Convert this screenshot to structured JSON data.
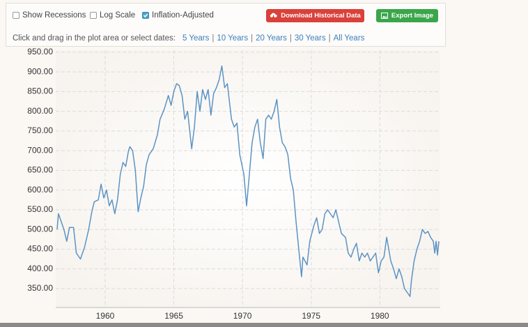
{
  "controls": {
    "checkboxes": [
      {
        "label": "Show Recessions",
        "checked": false
      },
      {
        "label": "Log Scale",
        "checked": false
      },
      {
        "label": "Inflation-Adjusted",
        "checked": true
      }
    ],
    "buttons": {
      "download": "Download Historical Data",
      "export": "Export Image"
    },
    "range_prompt": "Click and drag in the plot area or select dates:",
    "range_links": [
      "5 Years",
      "10 Years",
      "20 Years",
      "30 Years",
      "All Years"
    ],
    "separator": "|"
  },
  "chart_data": {
    "type": "line",
    "color": "#5b93c4",
    "grid": true,
    "xlim": [
      1956.4,
      1984.4
    ],
    "ylim": [
      302,
      955
    ],
    "xticks": [
      1960,
      1965,
      1970,
      1975,
      1980
    ],
    "yticks": [
      {
        "value": 350,
        "label": "350.00"
      },
      {
        "value": 400,
        "label": "400.00"
      },
      {
        "value": 450,
        "label": "450.00"
      },
      {
        "value": 500,
        "label": "500.00"
      },
      {
        "value": 550,
        "label": "550.00"
      },
      {
        "value": 600,
        "label": "600.00"
      },
      {
        "value": 650,
        "label": "650.00"
      },
      {
        "value": 700,
        "label": "700.00"
      },
      {
        "value": 750,
        "label": "750.00"
      },
      {
        "value": 800,
        "label": "800.00"
      },
      {
        "value": 850,
        "label": "850.00"
      },
      {
        "value": 900,
        "label": "900.00"
      },
      {
        "value": 950,
        "label": "950.00"
      }
    ],
    "x": [
      1956.5,
      1956.6,
      1957.0,
      1957.2,
      1957.4,
      1957.7,
      1957.9,
      1958.2,
      1958.5,
      1958.8,
      1959.0,
      1959.2,
      1959.5,
      1959.7,
      1959.9,
      1960.1,
      1960.3,
      1960.5,
      1960.7,
      1960.9,
      1961.1,
      1961.3,
      1961.5,
      1961.7,
      1961.8,
      1962.0,
      1962.2,
      1962.4,
      1962.6,
      1962.8,
      1963.0,
      1963.2,
      1963.5,
      1963.8,
      1964.0,
      1964.3,
      1964.6,
      1964.8,
      1965.0,
      1965.2,
      1965.4,
      1965.6,
      1965.8,
      1966.0,
      1966.3,
      1966.5,
      1966.7,
      1966.9,
      1967.1,
      1967.3,
      1967.5,
      1967.7,
      1967.9,
      1968.1,
      1968.3,
      1968.5,
      1968.7,
      1968.9,
      1969.2,
      1969.4,
      1969.6,
      1969.8,
      1970.1,
      1970.3,
      1970.5,
      1970.7,
      1970.9,
      1971.1,
      1971.3,
      1971.5,
      1971.7,
      1971.9,
      1972.1,
      1972.3,
      1972.5,
      1972.7,
      1972.9,
      1973.1,
      1973.3,
      1973.5,
      1973.7,
      1973.9,
      1974.1,
      1974.3,
      1974.4,
      1974.7,
      1974.9,
      1975.2,
      1975.4,
      1975.6,
      1975.8,
      1976.0,
      1976.2,
      1976.4,
      1976.6,
      1976.8,
      1977.0,
      1977.2,
      1977.5,
      1977.7,
      1977.9,
      1978.1,
      1978.3,
      1978.5,
      1978.7,
      1978.9,
      1979.1,
      1979.3,
      1979.5,
      1979.7,
      1979.9,
      1980.1,
      1980.3,
      1980.5,
      1980.6,
      1980.8,
      1981.0,
      1981.2,
      1981.4,
      1981.6,
      1981.8,
      1982.0,
      1982.2,
      1982.3,
      1982.5,
      1982.7,
      1982.9,
      1983.1,
      1983.3,
      1983.5,
      1983.7,
      1983.9,
      1984.0,
      1984.1,
      1984.2,
      1984.3
    ],
    "values": [
      500,
      540,
      500,
      470,
      505,
      505,
      440,
      425,
      455,
      500,
      540,
      570,
      575,
      615,
      580,
      600,
      560,
      575,
      540,
      575,
      640,
      670,
      660,
      700,
      710,
      700,
      650,
      545,
      580,
      610,
      665,
      690,
      705,
      740,
      780,
      805,
      840,
      815,
      850,
      870,
      865,
      840,
      780,
      800,
      705,
      760,
      850,
      800,
      855,
      830,
      855,
      790,
      845,
      860,
      880,
      915,
      860,
      870,
      780,
      760,
      770,
      690,
      640,
      560,
      640,
      720,
      760,
      780,
      720,
      680,
      780,
      790,
      780,
      800,
      830,
      760,
      720,
      710,
      690,
      630,
      600,
      520,
      450,
      380,
      430,
      410,
      470,
      510,
      530,
      490,
      500,
      540,
      550,
      540,
      530,
      550,
      520,
      490,
      480,
      440,
      430,
      450,
      465,
      420,
      440,
      430,
      440,
      420,
      430,
      440,
      390,
      420,
      430,
      480,
      460,
      420,
      400,
      375,
      400,
      380,
      350,
      340,
      330,
      370,
      420,
      450,
      470,
      500,
      490,
      495,
      480,
      470,
      440,
      470,
      435,
      470
    ]
  }
}
